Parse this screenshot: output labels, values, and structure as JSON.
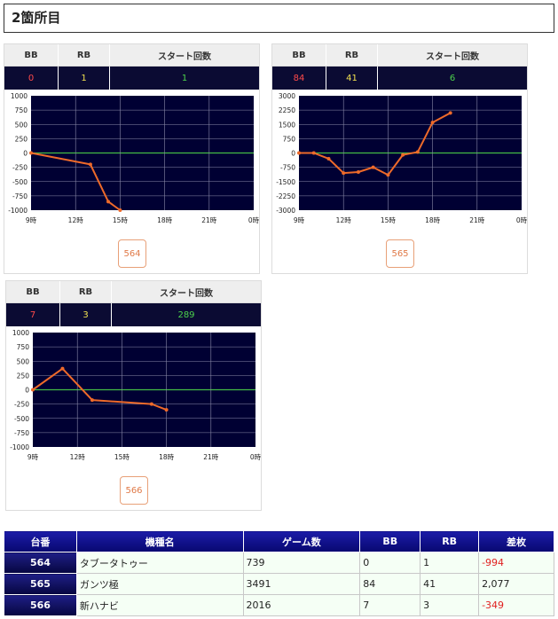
{
  "section": {
    "title": "2箇所目"
  },
  "headers": {
    "bb": "BB",
    "rb": "RB",
    "start": "スタート回数"
  },
  "cards": [
    {
      "bb": "0",
      "rb": "1",
      "start": "1",
      "machine": "564",
      "y_ticks": [
        "1000",
        "750",
        "500",
        "250",
        "0",
        "-250",
        "-500",
        "-750",
        "-1000"
      ],
      "ylim": [
        -1000,
        1000
      ],
      "x_ticks": [
        "9時",
        "12時",
        "15時",
        "18時",
        "21時",
        "0時"
      ],
      "xlim": [
        9,
        24
      ],
      "points": [
        [
          9,
          0
        ],
        [
          13,
          -200
        ],
        [
          14.2,
          -850
        ],
        [
          15,
          -1000
        ]
      ]
    },
    {
      "bb": "84",
      "rb": "41",
      "start": "6",
      "machine": "565",
      "y_ticks": [
        "3000",
        "2250",
        "1500",
        "750",
        "0",
        "-750",
        "-1500",
        "-2250",
        "-3000"
      ],
      "ylim": [
        -3000,
        3000
      ],
      "x_ticks": [
        "9時",
        "12時",
        "15時",
        "18時",
        "21時",
        "0時"
      ],
      "xlim": [
        9,
        24
      ],
      "points": [
        [
          9,
          0
        ],
        [
          10,
          0
        ],
        [
          11,
          -300
        ],
        [
          12,
          -1050
        ],
        [
          13,
          -1000
        ],
        [
          14,
          -750
        ],
        [
          15,
          -1150
        ],
        [
          16,
          -100
        ],
        [
          17,
          50
        ],
        [
          18,
          1600
        ],
        [
          19.2,
          2100
        ]
      ]
    },
    {
      "bb": "7",
      "rb": "3",
      "start": "289",
      "machine": "566",
      "y_ticks": [
        "1000",
        "750",
        "500",
        "250",
        "0",
        "-250",
        "-500",
        "-750",
        "-1000"
      ],
      "ylim": [
        -1000,
        1000
      ],
      "x_ticks": [
        "9時",
        "12時",
        "15時",
        "18時",
        "21時",
        "0時"
      ],
      "xlim": [
        9,
        24
      ],
      "points": [
        [
          9,
          0
        ],
        [
          11,
          370
        ],
        [
          13,
          -180
        ],
        [
          17,
          -250
        ],
        [
          18,
          -350
        ]
      ]
    }
  ],
  "table": {
    "columns": [
      "台番",
      "機種名",
      "ゲーム数",
      "BB",
      "RB",
      "差枚"
    ],
    "rows": [
      {
        "num": "564",
        "name": "タブータトゥー",
        "games": "739",
        "bb": "0",
        "rb": "1",
        "diff": "-994",
        "negative": true
      },
      {
        "num": "565",
        "name": "ガンツ極",
        "games": "3491",
        "bb": "84",
        "rb": "41",
        "diff": "2,077",
        "negative": false
      },
      {
        "num": "566",
        "name": "新ハナビ",
        "games": "2016",
        "bb": "7",
        "rb": "3",
        "diff": "-349",
        "negative": true
      }
    ]
  },
  "chart_data": [
    {
      "type": "line",
      "x": [
        9,
        13,
        14.2,
        15
      ],
      "series": [
        {
          "values": [
            0,
            -200,
            -850,
            -1000
          ]
        }
      ],
      "xlim": [
        9,
        24
      ],
      "ylim": [
        -1000,
        1000
      ],
      "grid": true
    },
    {
      "type": "line",
      "x": [
        9,
        10,
        11,
        12,
        13,
        14,
        15,
        16,
        17,
        18,
        19.2
      ],
      "series": [
        {
          "values": [
            0,
            0,
            -300,
            -1050,
            -1000,
            -750,
            -1150,
            -100,
            50,
            1600,
            2100
          ]
        }
      ],
      "xlim": [
        9,
        24
      ],
      "ylim": [
        -3000,
        3000
      ],
      "grid": true
    },
    {
      "type": "line",
      "x": [
        9,
        11,
        13,
        17,
        18
      ],
      "series": [
        {
          "values": [
            0,
            370,
            -180,
            -250,
            -350
          ]
        }
      ],
      "xlim": [
        9,
        24
      ],
      "ylim": [
        -1000,
        1000
      ],
      "grid": true
    }
  ],
  "colors": {
    "plot_bg": "#000033",
    "line": "#ee6a2a",
    "zero_line": "#44bb44",
    "header_bg": "#0b0b33",
    "bb": "#ff4a4a",
    "rb": "#f0e050",
    "start": "#4cd24c"
  }
}
